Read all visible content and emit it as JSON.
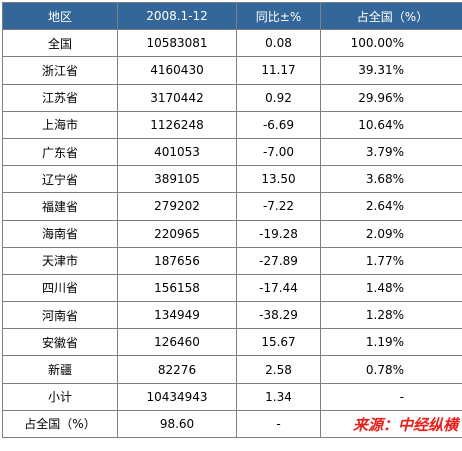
{
  "table": {
    "headers": [
      "地区",
      "2008.1-12",
      "同比±%",
      "占全国（%）"
    ],
    "rows": [
      [
        "全国",
        "10583081",
        "0.08",
        "100.00%"
      ],
      [
        "浙江省",
        "4160430",
        "11.17",
        "39.31%"
      ],
      [
        "江苏省",
        "3170442",
        "0.92",
        "29.96%"
      ],
      [
        "上海市",
        "1126248",
        "-6.69",
        "10.64%"
      ],
      [
        "广东省",
        "401053",
        "-7.00",
        "3.79%"
      ],
      [
        "辽宁省",
        "389105",
        "13.50",
        "3.68%"
      ],
      [
        "福建省",
        "279202",
        "-7.22",
        "2.64%"
      ],
      [
        "海南省",
        "220965",
        "-19.28",
        "2.09%"
      ],
      [
        "天津市",
        "187656",
        "-27.89",
        "1.77%"
      ],
      [
        "四川省",
        "156158",
        "-17.44",
        "1.48%"
      ],
      [
        "河南省",
        "134949",
        "-38.29",
        "1.28%"
      ],
      [
        "安徽省",
        "126460",
        "15.67",
        "1.19%"
      ],
      [
        "新疆",
        "82276",
        "2.58",
        "0.78%"
      ],
      [
        "小计",
        "10434943",
        "1.34",
        "-"
      ],
      [
        "占全国（%）",
        "98.60",
        "-",
        ""
      ]
    ]
  },
  "source_note": "来源：中经纵横",
  "colors": {
    "header_bg": "#336699",
    "header_text": "#ffffff",
    "source_text": "#e8211d",
    "border": "#7f7f7f"
  }
}
